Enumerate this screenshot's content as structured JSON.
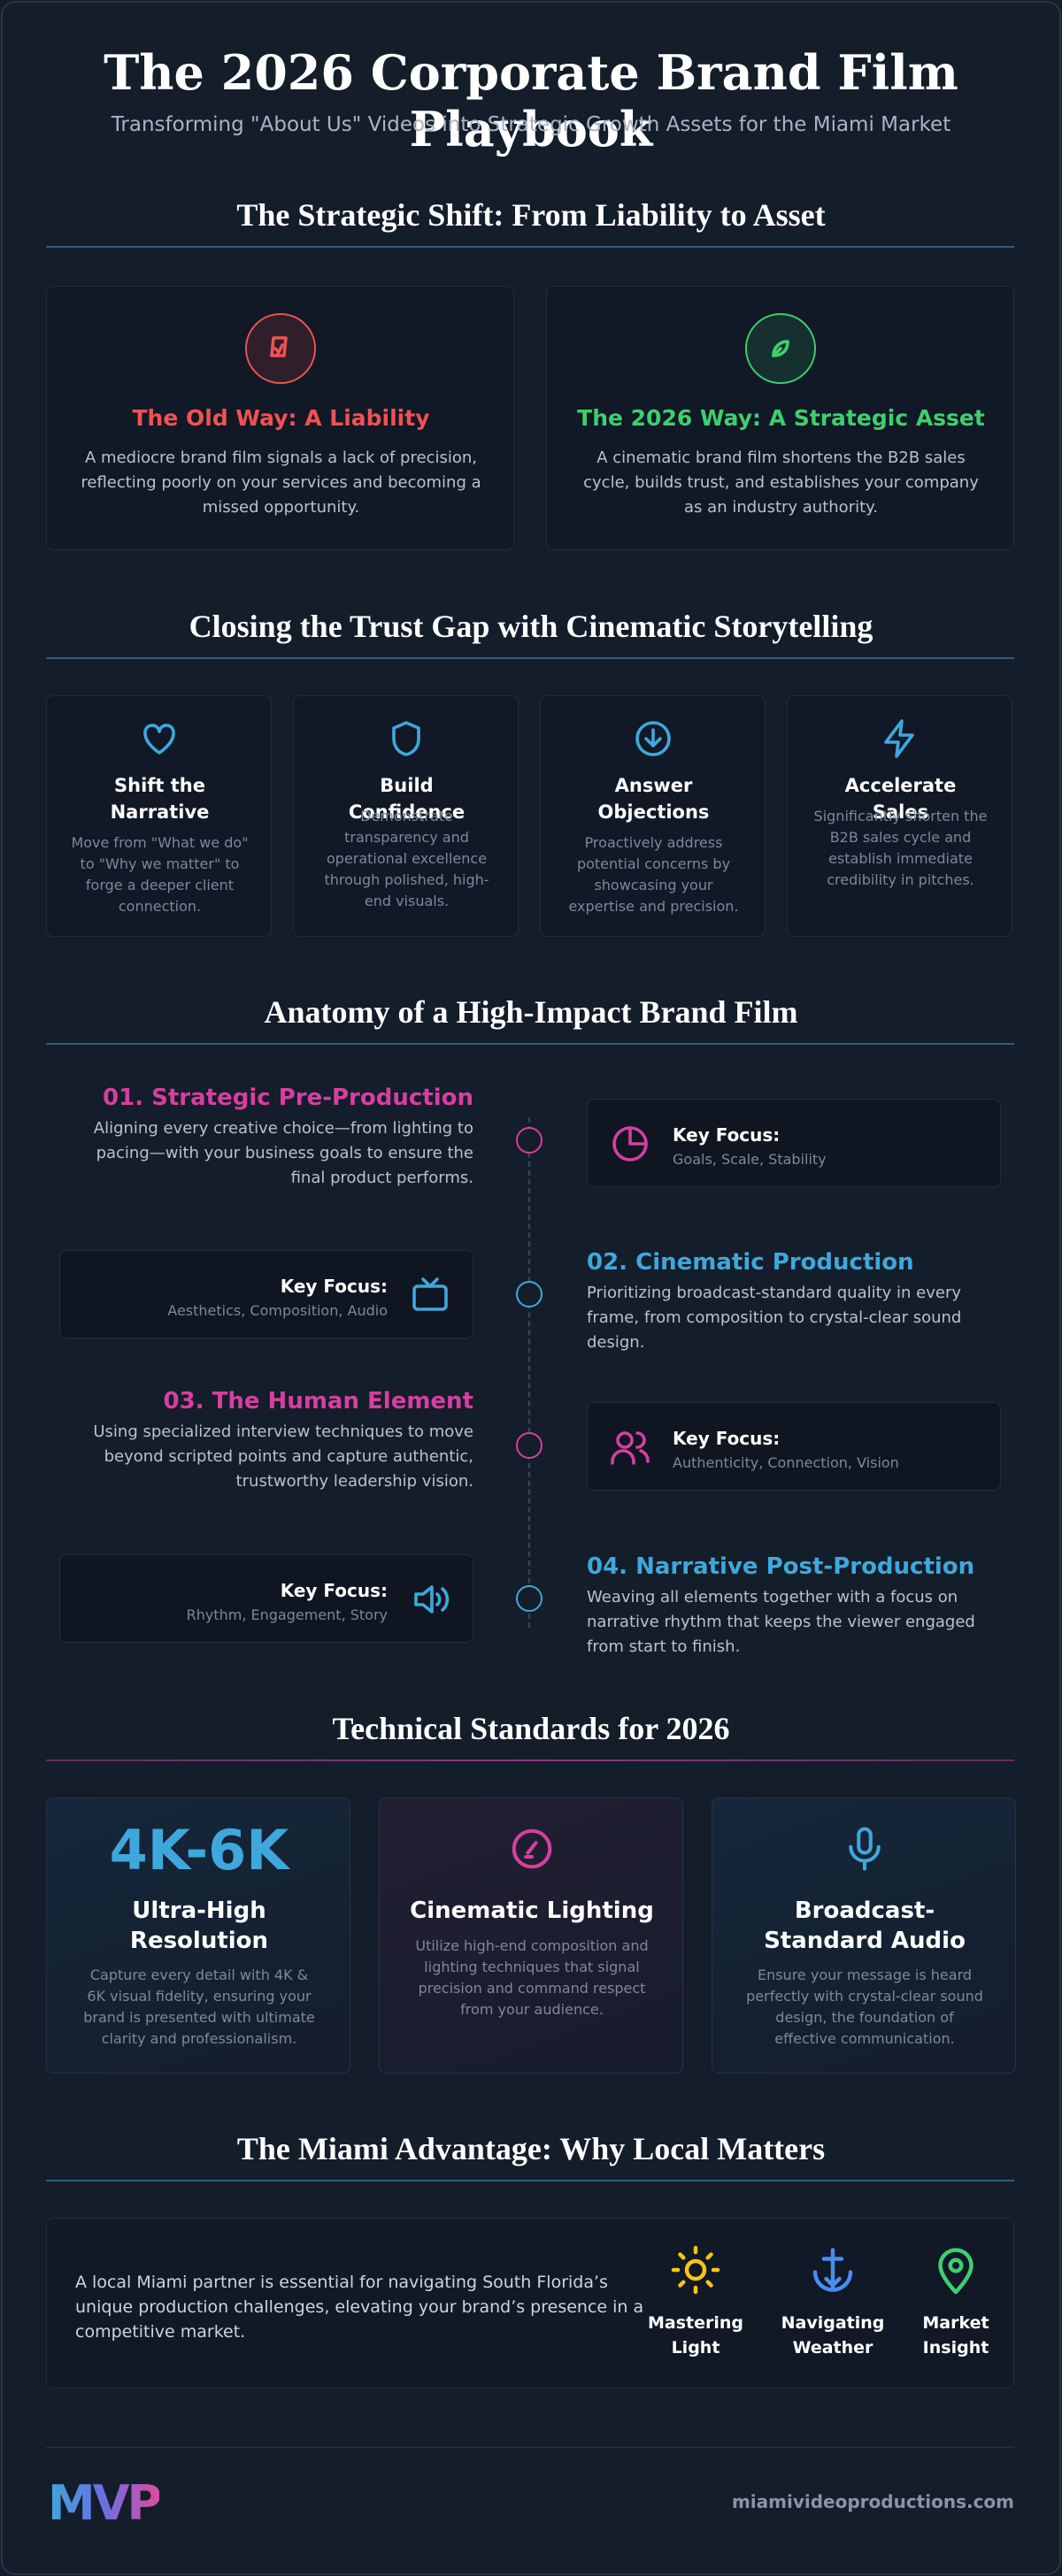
{
  "header": {
    "title": "The 2026 Corporate Brand Film Playbook",
    "subtitle": "Transforming \"About Us\" Videos into Strategic Growth Assets for the Miami Market"
  },
  "strategic_shift": {
    "heading": "The Strategic Shift: From Liability to Asset",
    "cards": [
      {
        "title": "The Old Way: A Liability",
        "text": "A mediocre brand film signals a lack of precision, reflecting poorly on your services and becoming a missed opportunity."
      },
      {
        "title": "The 2026 Way: A Strategic Asset",
        "text": "A cinematic brand film shortens the B2B sales cycle, builds trust, and establishes your company as an industry authority."
      }
    ]
  },
  "trust_gap": {
    "heading": "Closing the Trust Gap with Cinematic Storytelling",
    "cards": [
      {
        "title": "Shift the Narrative",
        "text": "Move from \"What we do\" to \"Why we matter\" to forge a deeper client connection."
      },
      {
        "title": "Build Confidence",
        "text": "Demonstrate transparency and operational excellence through polished, high-end visuals."
      },
      {
        "title": "Answer Objections",
        "text": "Proactively address potential concerns by showcasing your expertise and precision."
      },
      {
        "title": "Accelerate Sales",
        "text": "Significantly shorten the B2B sales cycle and establish immediate credibility in pitches."
      }
    ]
  },
  "anatomy": {
    "heading": "Anatomy of a High-Impact Brand Film",
    "steps": [
      {
        "title": "01. Strategic Pre-Production",
        "text": "Aligning every creative choice—from lighting to pacing—with your business goals to ensure the final product performs.",
        "focus_label": "Key Focus:",
        "focus_items": "Goals, Scale, Stability"
      },
      {
        "title": "02. Cinematic Production",
        "text": "Prioritizing broadcast-standard quality in every frame, from composition to crystal-clear sound design.",
        "focus_label": "Key Focus:",
        "focus_items": "Aesthetics, Composition, Audio"
      },
      {
        "title": "03. The Human Element",
        "text": "Using specialized interview techniques to move beyond scripted points and capture authentic, trustworthy leadership vision.",
        "focus_label": "Key Focus:",
        "focus_items": "Authenticity, Connection, Vision"
      },
      {
        "title": "04. Narrative Post-Production",
        "text": "Weaving all elements together with a focus on narrative rhythm that keeps the viewer engaged from start to finish.",
        "focus_label": "Key Focus:",
        "focus_items": "Rhythm, Engagement, Story"
      }
    ]
  },
  "technical": {
    "heading": "Technical Standards for 2026",
    "cards": [
      {
        "stat": "4K-6K",
        "title": "Ultra-High Resolution",
        "text": "Capture every detail with 4K & 6K visual fidelity, ensuring your brand is presented with ultimate clarity and professionalism."
      },
      {
        "title": "Cinematic Lighting",
        "text": "Utilize high-end composition and lighting techniques that signal precision and command respect from your audience."
      },
      {
        "title": "Broadcast-Standard Audio",
        "text": "Ensure your message is heard perfectly with crystal-clear sound design, the foundation of effective communication."
      }
    ]
  },
  "miami": {
    "heading": "The Miami Advantage: Why Local Matters",
    "text": "A local Miami partner is essential for navigating South Florida’s unique production challenges, elevating your brand’s presence in a competitive market.",
    "items": [
      "Mastering Light",
      "Navigating Weather",
      "Market Insight"
    ]
  },
  "footer": {
    "logo": "MVP",
    "url": "miamivideoproductions.com"
  }
}
